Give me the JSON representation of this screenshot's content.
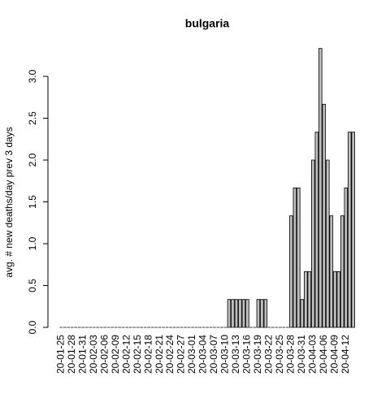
{
  "chart_data": {
    "type": "bar",
    "title": "bulgaria",
    "y_label": "avg. # new deaths/day prev  3  days",
    "categories": [
      "20-01-25",
      null,
      null,
      "20-01-28",
      null,
      null,
      "20-01-31",
      null,
      null,
      "20-02-03",
      null,
      null,
      "20-02-06",
      null,
      null,
      "20-02-09",
      null,
      null,
      "20-02-12",
      null,
      null,
      "20-02-15",
      null,
      null,
      "20-02-18",
      null,
      null,
      "20-02-21",
      null,
      null,
      "20-02-24",
      null,
      null,
      "20-02-27",
      null,
      null,
      "20-03-01",
      null,
      null,
      "20-03-04",
      null,
      null,
      "20-03-07",
      null,
      null,
      "20-03-10",
      null,
      null,
      "20-03-13",
      null,
      null,
      "20-03-16",
      null,
      null,
      "20-03-19",
      null,
      null,
      "20-03-22",
      null,
      null,
      "20-03-25",
      null,
      null,
      "20-03-28",
      null,
      null,
      "20-03-31",
      null,
      null,
      "20-04-03",
      null,
      null,
      "20-04-06",
      null,
      null,
      "20-04-09",
      null,
      null,
      "20-04-12",
      null,
      null
    ],
    "values": [
      0,
      0,
      0,
      0,
      0,
      0,
      0,
      0,
      0,
      0,
      0,
      0,
      0,
      0,
      0,
      0,
      0,
      0,
      0,
      0,
      0,
      0,
      0,
      0,
      0,
      0,
      0,
      0,
      0,
      0,
      0,
      0,
      0,
      0,
      0,
      0,
      0,
      0,
      0,
      0,
      0,
      0,
      0,
      0,
      0,
      0,
      0.333,
      0.333,
      0.333,
      0.333,
      0.333,
      0.333,
      0,
      0,
      0.333,
      0.333,
      0.333,
      0,
      0,
      0,
      0,
      0,
      0,
      1.333,
      1.667,
      1.667,
      0.333,
      0.667,
      0.667,
      2.0,
      2.333,
      3.333,
      2.667,
      2.0,
      1.333,
      0.667,
      0.667,
      1.333,
      1.667,
      2.333,
      2.333
    ],
    "color": "#bebebe",
    "ylim": [
      0,
      3.4
    ],
    "yticks": [
      {
        "value": 0,
        "label": "0.0"
      },
      {
        "value": 0.5,
        "label": "0.5"
      },
      {
        "value": 1,
        "label": "1.0"
      },
      {
        "value": 1.5,
        "label": "1.5"
      },
      {
        "value": 2,
        "label": "2.0"
      },
      {
        "value": 2.5,
        "label": "2.5"
      },
      {
        "value": 3,
        "label": "3.0"
      }
    ]
  }
}
